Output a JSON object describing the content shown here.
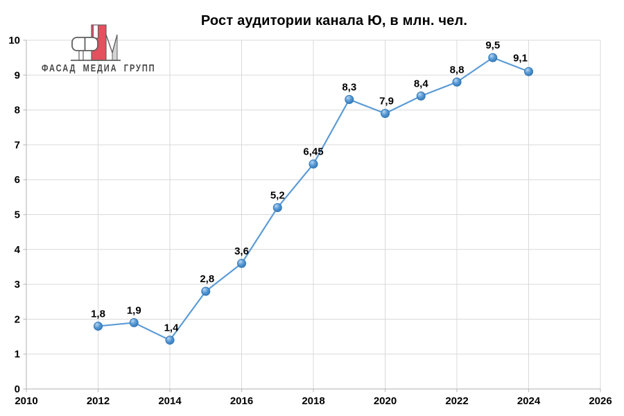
{
  "header": {
    "title": "Рост аудитории канала Ю, в млн. чел."
  },
  "logo": {
    "name": "fasad-media-group",
    "text": "ФАСАД МЕДИА ГРУПП",
    "colors": {
      "red": "#e5505e",
      "outline": "#5f5f5f",
      "light_gray": "#d4d4d4",
      "text": "#474747"
    }
  },
  "chart_data": {
    "type": "line",
    "title": "Рост аудитории канала Ю, в млн. чел.",
    "xlabel": "",
    "ylabel": "",
    "x": [
      2012,
      2013,
      2014,
      2015,
      2016,
      2017,
      2018,
      2019,
      2020,
      2021,
      2022,
      2023,
      2024
    ],
    "values": [
      1.8,
      1.9,
      1.4,
      2.8,
      3.6,
      5.2,
      6.45,
      8.3,
      7.9,
      8.4,
      8.8,
      9.5,
      9.1
    ],
    "point_labels": [
      "1,8",
      "1,9",
      "1,4",
      "2,8",
      "3,6",
      "5,2",
      "6,45",
      "8,3",
      "7,9",
      "8,4",
      "8,8",
      "9,5",
      "9,1"
    ],
    "label_dx": [
      0,
      0,
      2,
      2,
      0,
      0,
      0,
      0,
      2,
      0,
      0,
      0,
      -12
    ],
    "label_dy": [
      -13,
      -13,
      -13,
      -13,
      -13,
      -13,
      -13,
      -13,
      -13,
      -13,
      -13,
      -13,
      -15
    ],
    "xlim": [
      2010,
      2026
    ],
    "ylim": [
      0,
      10
    ],
    "x_ticks": [
      2010,
      2012,
      2014,
      2016,
      2018,
      2020,
      2022,
      2024,
      2026
    ],
    "y_ticks": [
      0,
      1,
      2,
      3,
      4,
      5,
      6,
      7,
      8,
      9,
      10
    ],
    "grid": true,
    "legend": false,
    "marker": "circle-3d",
    "colors": {
      "line": "#5b9bd5",
      "marker_fill": "#4a90d2",
      "marker_highlight": "#b8d7f2",
      "marker_edge": "#2e75b6",
      "gridline": "#d9d9d9",
      "axis_line": "#bfbfbf",
      "tick_label": "#000000",
      "data_label": "#000000",
      "title": "#000000"
    }
  }
}
